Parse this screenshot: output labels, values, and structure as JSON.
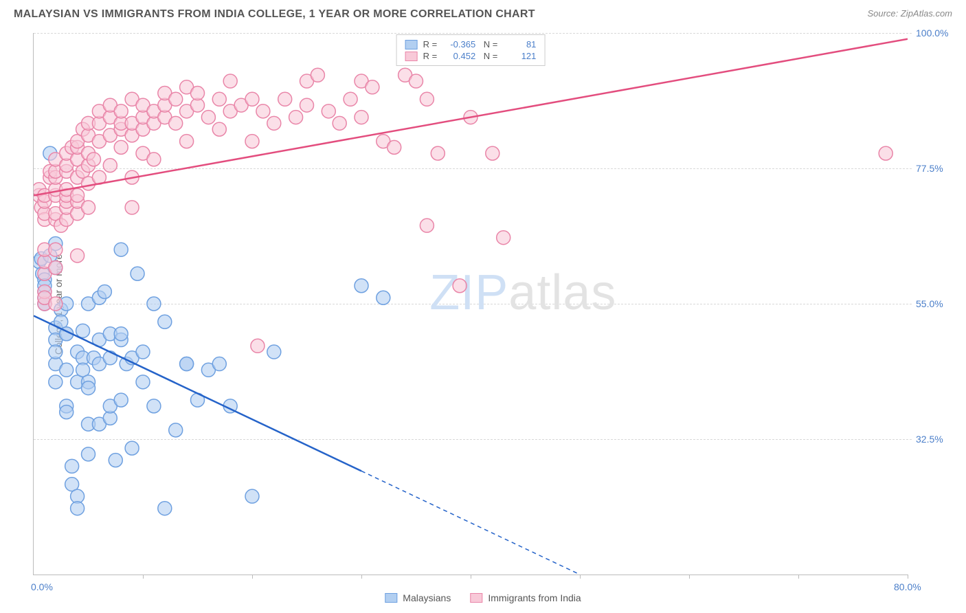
{
  "header": {
    "title": "MALAYSIAN VS IMMIGRANTS FROM INDIA COLLEGE, 1 YEAR OR MORE CORRELATION CHART",
    "source": "Source: ZipAtlas.com"
  },
  "watermark": {
    "a": "ZIP",
    "b": "atlas"
  },
  "chart": {
    "type": "scatter",
    "background_color": "#ffffff",
    "grid_color": "#d8d8d8",
    "axis_color": "#bbbbbb",
    "tick_label_color": "#4a7ec9",
    "tick_label_fontsize": 14,
    "y_axis_title": "College, 1 year or more",
    "y_axis_title_fontsize": 14,
    "xlim": [
      0,
      80
    ],
    "ylim": [
      10,
      100
    ],
    "x_ticks": [
      0,
      10,
      20,
      30,
      40,
      50,
      60,
      70,
      80
    ],
    "x_tick_labels": {
      "0": "0.0%",
      "80": "80.0%"
    },
    "y_ticks": [
      32.5,
      55.0,
      77.5,
      100.0
    ],
    "y_tick_labels": [
      "32.5%",
      "55.0%",
      "77.5%",
      "100.0%"
    ],
    "series": [
      {
        "key": "malaysians",
        "label": "Malaysians",
        "marker_color": "#b2cff1",
        "marker_stroke": "#6ea0e0",
        "marker_radius": 10,
        "marker_opacity": 0.6,
        "line_color": "#2563c9",
        "line_width": 2.5,
        "line_dash_after_x": 30,
        "stats": {
          "R": "-0.365",
          "N": "81"
        },
        "regression": {
          "x1": 0,
          "y1": 53,
          "x2": 50,
          "y2": 10
        },
        "points": [
          [
            0.5,
            62
          ],
          [
            0.7,
            62.5
          ],
          [
            0.8,
            60
          ],
          [
            1,
            59
          ],
          [
            1,
            57
          ],
          [
            1,
            55
          ],
          [
            1,
            55
          ],
          [
            1,
            56
          ],
          [
            1,
            58
          ],
          [
            1.5,
            63
          ],
          [
            1.5,
            80
          ],
          [
            2,
            61
          ],
          [
            2,
            65
          ],
          [
            2,
            51
          ],
          [
            2,
            49
          ],
          [
            2,
            45
          ],
          [
            2,
            42
          ],
          [
            2,
            47
          ],
          [
            2.5,
            54
          ],
          [
            2.5,
            52
          ],
          [
            3,
            55
          ],
          [
            3,
            50
          ],
          [
            3,
            50
          ],
          [
            3,
            38
          ],
          [
            3,
            37
          ],
          [
            3,
            44
          ],
          [
            3.5,
            28
          ],
          [
            3.5,
            25
          ],
          [
            4,
            23
          ],
          [
            4,
            21
          ],
          [
            4,
            47
          ],
          [
            4,
            42
          ],
          [
            4.5,
            46
          ],
          [
            4.5,
            44
          ],
          [
            4.5,
            50.5
          ],
          [
            5,
            30
          ],
          [
            5,
            42
          ],
          [
            5,
            41
          ],
          [
            5,
            35
          ],
          [
            5,
            55
          ],
          [
            5.5,
            46
          ],
          [
            6,
            45
          ],
          [
            6,
            35
          ],
          [
            6,
            49
          ],
          [
            6,
            56
          ],
          [
            6.5,
            57
          ],
          [
            7,
            50
          ],
          [
            7,
            36
          ],
          [
            7,
            38
          ],
          [
            7,
            46
          ],
          [
            7.5,
            29
          ],
          [
            8,
            49
          ],
          [
            8,
            50
          ],
          [
            8,
            39
          ],
          [
            8,
            64
          ],
          [
            8.5,
            45
          ],
          [
            9,
            31
          ],
          [
            9,
            46
          ],
          [
            9.5,
            60
          ],
          [
            10,
            42
          ],
          [
            10,
            47
          ],
          [
            11,
            38
          ],
          [
            11,
            55
          ],
          [
            12,
            21
          ],
          [
            12,
            52
          ],
          [
            13,
            34
          ],
          [
            14,
            45
          ],
          [
            14,
            45
          ],
          [
            15,
            39
          ],
          [
            16,
            44
          ],
          [
            17,
            45
          ],
          [
            18,
            38
          ],
          [
            20,
            23
          ],
          [
            22,
            47
          ],
          [
            30,
            58
          ],
          [
            32,
            56
          ]
        ]
      },
      {
        "key": "india",
        "label": "Immigrants from India",
        "marker_color": "#f8c9d8",
        "marker_stroke": "#e985a8",
        "marker_radius": 10,
        "marker_opacity": 0.6,
        "line_color": "#e34d7e",
        "line_width": 2.5,
        "stats": {
          "R": "0.452",
          "N": "121"
        },
        "regression": {
          "x1": 0,
          "y1": 73,
          "x2": 80,
          "y2": 99
        },
        "points": [
          [
            0.5,
            73
          ],
          [
            0.5,
            74
          ],
          [
            0.7,
            71
          ],
          [
            1,
            55
          ],
          [
            1,
            57
          ],
          [
            1,
            56
          ],
          [
            1,
            60
          ],
          [
            1,
            62
          ],
          [
            1,
            64
          ],
          [
            1,
            69
          ],
          [
            1,
            70
          ],
          [
            1,
            72
          ],
          [
            1,
            73
          ],
          [
            1.5,
            76
          ],
          [
            1.5,
            77
          ],
          [
            2,
            55
          ],
          [
            2,
            61
          ],
          [
            2,
            64
          ],
          [
            2,
            69
          ],
          [
            2,
            70
          ],
          [
            2,
            73
          ],
          [
            2,
            74
          ],
          [
            2,
            76
          ],
          [
            2,
            77
          ],
          [
            2,
            79
          ],
          [
            2.5,
            68
          ],
          [
            3,
            69
          ],
          [
            3,
            71
          ],
          [
            3,
            72
          ],
          [
            3,
            73
          ],
          [
            3,
            74
          ],
          [
            3,
            77
          ],
          [
            3,
            78
          ],
          [
            3,
            80
          ],
          [
            3.5,
            81
          ],
          [
            4,
            63
          ],
          [
            4,
            70
          ],
          [
            4,
            72
          ],
          [
            4,
            73
          ],
          [
            4,
            76
          ],
          [
            4,
            79
          ],
          [
            4,
            81
          ],
          [
            4,
            82
          ],
          [
            4.5,
            84
          ],
          [
            4.5,
            77
          ],
          [
            5,
            71
          ],
          [
            5,
            75
          ],
          [
            5,
            78
          ],
          [
            5,
            80
          ],
          [
            5,
            83
          ],
          [
            5,
            85
          ],
          [
            5.5,
            79
          ],
          [
            6,
            82
          ],
          [
            6,
            85
          ],
          [
            6,
            87
          ],
          [
            6,
            76
          ],
          [
            7,
            78
          ],
          [
            7,
            83
          ],
          [
            7,
            86
          ],
          [
            7,
            88
          ],
          [
            8,
            81
          ],
          [
            8,
            84
          ],
          [
            8,
            85
          ],
          [
            8,
            87
          ],
          [
            9,
            71
          ],
          [
            9,
            76
          ],
          [
            9,
            83
          ],
          [
            9,
            85
          ],
          [
            9,
            89
          ],
          [
            10,
            80
          ],
          [
            10,
            84
          ],
          [
            10,
            86
          ],
          [
            10,
            88
          ],
          [
            11,
            79
          ],
          [
            11,
            85
          ],
          [
            11,
            87
          ],
          [
            12,
            86
          ],
          [
            12,
            88
          ],
          [
            12,
            90
          ],
          [
            13,
            85
          ],
          [
            13,
            89
          ],
          [
            14,
            82
          ],
          [
            14,
            87
          ],
          [
            14,
            91
          ],
          [
            15,
            88
          ],
          [
            15,
            90
          ],
          [
            16,
            86
          ],
          [
            17,
            84
          ],
          [
            17,
            89
          ],
          [
            18,
            87
          ],
          [
            18,
            92
          ],
          [
            19,
            88
          ],
          [
            20,
            82
          ],
          [
            20,
            89
          ],
          [
            20.5,
            48
          ],
          [
            21,
            87
          ],
          [
            22,
            85
          ],
          [
            23,
            89
          ],
          [
            24,
            86
          ],
          [
            25,
            88
          ],
          [
            25,
            92
          ],
          [
            26,
            93
          ],
          [
            27,
            87
          ],
          [
            28,
            85
          ],
          [
            29,
            89
          ],
          [
            30,
            86
          ],
          [
            30,
            92
          ],
          [
            31,
            91
          ],
          [
            32,
            82
          ],
          [
            33,
            81
          ],
          [
            34,
            93
          ],
          [
            35,
            92
          ],
          [
            36,
            89
          ],
          [
            36,
            68
          ],
          [
            37,
            80
          ],
          [
            39,
            58
          ],
          [
            40,
            86
          ],
          [
            42,
            80
          ],
          [
            43,
            66
          ],
          [
            78,
            80
          ]
        ]
      }
    ]
  },
  "legend_bottom": [
    {
      "series": "malaysians"
    },
    {
      "series": "india"
    }
  ]
}
